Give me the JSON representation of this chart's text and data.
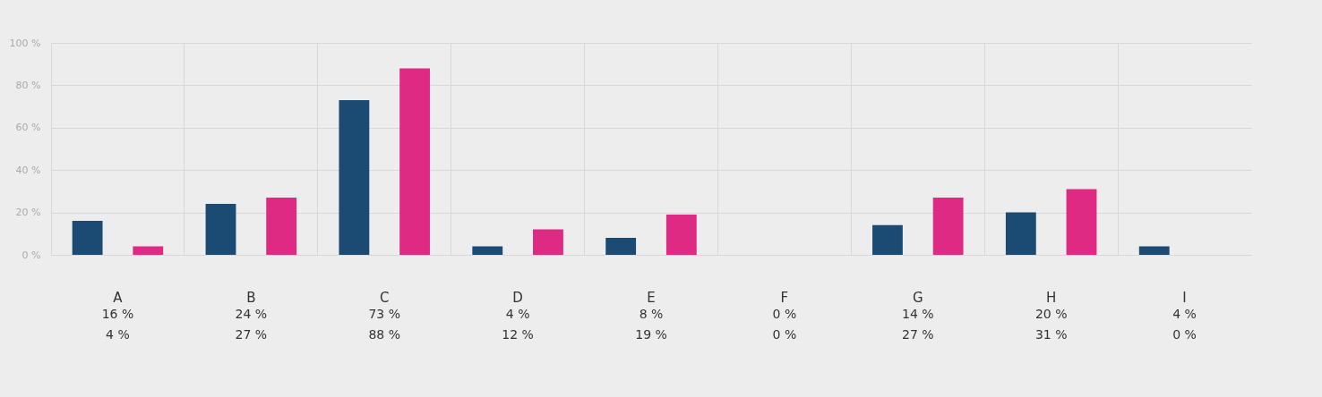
{
  "chart_data": {
    "type": "bar",
    "categories": [
      "A",
      "B",
      "C",
      "D",
      "E",
      "F",
      "G",
      "H",
      "I"
    ],
    "series": [
      {
        "color": "#1b4a73",
        "values": [
          16,
          24,
          73,
          4,
          8,
          0,
          14,
          20,
          4
        ],
        "value_labels": [
          "16 %",
          "24 %",
          "73 %",
          "4 %",
          "8 %",
          "0 %",
          "14 %",
          "20 %",
          "4 %"
        ]
      },
      {
        "color": "#de2a82",
        "values": [
          4,
          27,
          88,
          12,
          19,
          0,
          27,
          31,
          0
        ],
        "value_labels": [
          "4 %",
          "27 %",
          "88 %",
          "12 %",
          "19 %",
          "0 %",
          "27 %",
          "31 %",
          "0 %"
        ]
      }
    ],
    "ylim": [
      0,
      100
    ],
    "yticks": [
      {
        "value": 0,
        "label": "0 %"
      },
      {
        "value": 20,
        "label": "20 %"
      },
      {
        "value": 40,
        "label": "40 %"
      },
      {
        "value": 60,
        "label": "60 %"
      },
      {
        "value": 80,
        "label": "80 %"
      },
      {
        "value": 100,
        "label": "100 %"
      }
    ],
    "grid": true
  }
}
